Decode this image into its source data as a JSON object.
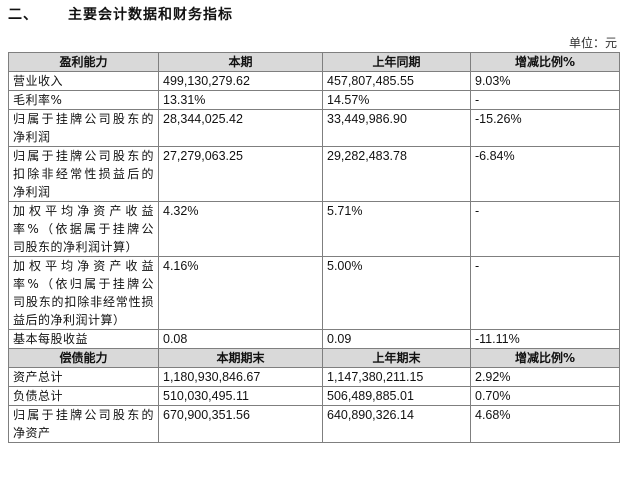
{
  "section": {
    "number": "二、",
    "title": "主要会计数据和财务指标"
  },
  "unit": "单位：元",
  "profit": {
    "header": [
      "盈利能力",
      "本期",
      "上年同期",
      "增减比例%"
    ],
    "rows": [
      {
        "label_lines": [
          "营业收入"
        ],
        "current": "499,130,279.62",
        "prior": "457,807,485.55",
        "change": "9.03%"
      },
      {
        "label_lines": [
          "毛利率%"
        ],
        "current": "13.31%",
        "prior": "14.57%",
        "change": "-"
      },
      {
        "label_lines": [
          "归属于挂牌公司股东的",
          "净利润"
        ],
        "current": "28,344,025.42",
        "prior": "33,449,986.90",
        "change": "-15.26%"
      },
      {
        "label_lines": [
          "归属于挂牌公司股东的",
          "扣除非经常性损益后的",
          "净利润"
        ],
        "current": "27,279,063.25",
        "prior": "29,282,483.78",
        "change": "-6.84%"
      },
      {
        "label_lines": [
          "加权平均净资产收益",
          "率%（依据属于挂牌公",
          "司股东的净利润计算）"
        ],
        "current": "4.32%",
        "prior": "5.71%",
        "change": "-"
      },
      {
        "label_lines": [
          "加权平均净资产收益",
          "率%（依归属于挂牌公",
          "司股东的扣除非经常性损",
          "益后的净利润计算）"
        ],
        "current": "4.16%",
        "prior": "5.00%",
        "change": "-"
      },
      {
        "label_lines": [
          "基本每股收益"
        ],
        "current": "0.08",
        "prior": "0.09",
        "change": "-11.11%"
      }
    ]
  },
  "solvency": {
    "header": [
      "偿债能力",
      "本期期末",
      "上年期末",
      "增减比例%"
    ],
    "rows": [
      {
        "label_lines": [
          "资产总计"
        ],
        "current": "1,180,930,846.67",
        "prior": "1,147,380,211.15",
        "change": "2.92%"
      },
      {
        "label_lines": [
          "负债总计"
        ],
        "current": "510,030,495.11",
        "prior": "506,489,885.01",
        "change": "0.70%"
      },
      {
        "label_lines": [
          "归属于挂牌公司股东的",
          "净资产"
        ],
        "current": "670,900,351.56",
        "prior": "640,890,326.14",
        "change": "4.68%"
      }
    ]
  }
}
